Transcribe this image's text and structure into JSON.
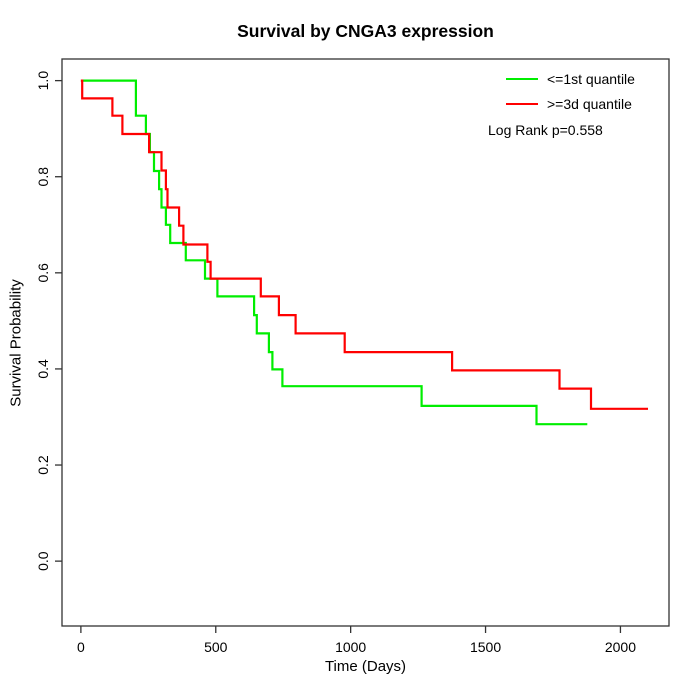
{
  "title": "Survival by CNGA3 expression",
  "legend": {
    "entries": [
      {
        "label": "<=1st quantile",
        "color": "#00ee00"
      },
      {
        "label": ">=3d quantile",
        "color": "#ff0000"
      }
    ],
    "note": "Log Rank p=0.558"
  },
  "colors": {
    "background": "#ffffff",
    "axis": "#333333",
    "text": "#000000",
    "green_curve": "#00ee00",
    "red_curve": "#ff0000"
  },
  "chart_data": {
    "type": "line",
    "subtype": "kaplan-meier-step",
    "title": "Survival by CNGA3 expression",
    "xlabel": "Time (Days)",
    "ylabel": "Survival Probability",
    "xlim": [
      -70,
      2180
    ],
    "ylim": [
      -0.135,
      1.045
    ],
    "xticks": [
      0,
      500,
      1000,
      1500,
      2000
    ],
    "yticks": [
      "0.0",
      "0.2",
      "0.4",
      "0.6",
      "0.8",
      "1.0"
    ],
    "grid": false,
    "legend_position": "top-right",
    "annotation": "Log Rank p=0.558",
    "series": [
      {
        "name": "<=1st quantile",
        "color": "#00ee00",
        "end_x": 1877,
        "steps": [
          [
            0,
            1.0
          ],
          [
            204,
            0.927
          ],
          [
            241,
            0.889
          ],
          [
            256,
            0.851
          ],
          [
            271,
            0.812
          ],
          [
            290,
            0.774
          ],
          [
            299,
            0.736
          ],
          [
            315,
            0.7
          ],
          [
            331,
            0.662
          ],
          [
            389,
            0.626
          ],
          [
            460,
            0.588
          ],
          [
            506,
            0.551
          ],
          [
            642,
            0.512
          ],
          [
            652,
            0.474
          ],
          [
            697,
            0.435
          ],
          [
            710,
            0.399
          ],
          [
            747,
            0.364
          ],
          [
            1263,
            0.323
          ],
          [
            1689,
            0.285
          ]
        ]
      },
      {
        "name": ">=3d quantile",
        "color": "#ff0000",
        "end_x": 2102,
        "steps": [
          [
            0,
            1.0
          ],
          [
            5,
            0.963
          ],
          [
            117,
            0.927
          ],
          [
            154,
            0.889
          ],
          [
            253,
            0.851
          ],
          [
            299,
            0.813
          ],
          [
            315,
            0.774
          ],
          [
            321,
            0.736
          ],
          [
            364,
            0.698
          ],
          [
            380,
            0.659
          ],
          [
            469,
            0.623
          ],
          [
            481,
            0.588
          ],
          [
            667,
            0.551
          ],
          [
            734,
            0.512
          ],
          [
            796,
            0.474
          ],
          [
            978,
            0.435
          ],
          [
            1376,
            0.397
          ],
          [
            1774,
            0.359
          ],
          [
            1891,
            0.317
          ]
        ]
      }
    ]
  }
}
